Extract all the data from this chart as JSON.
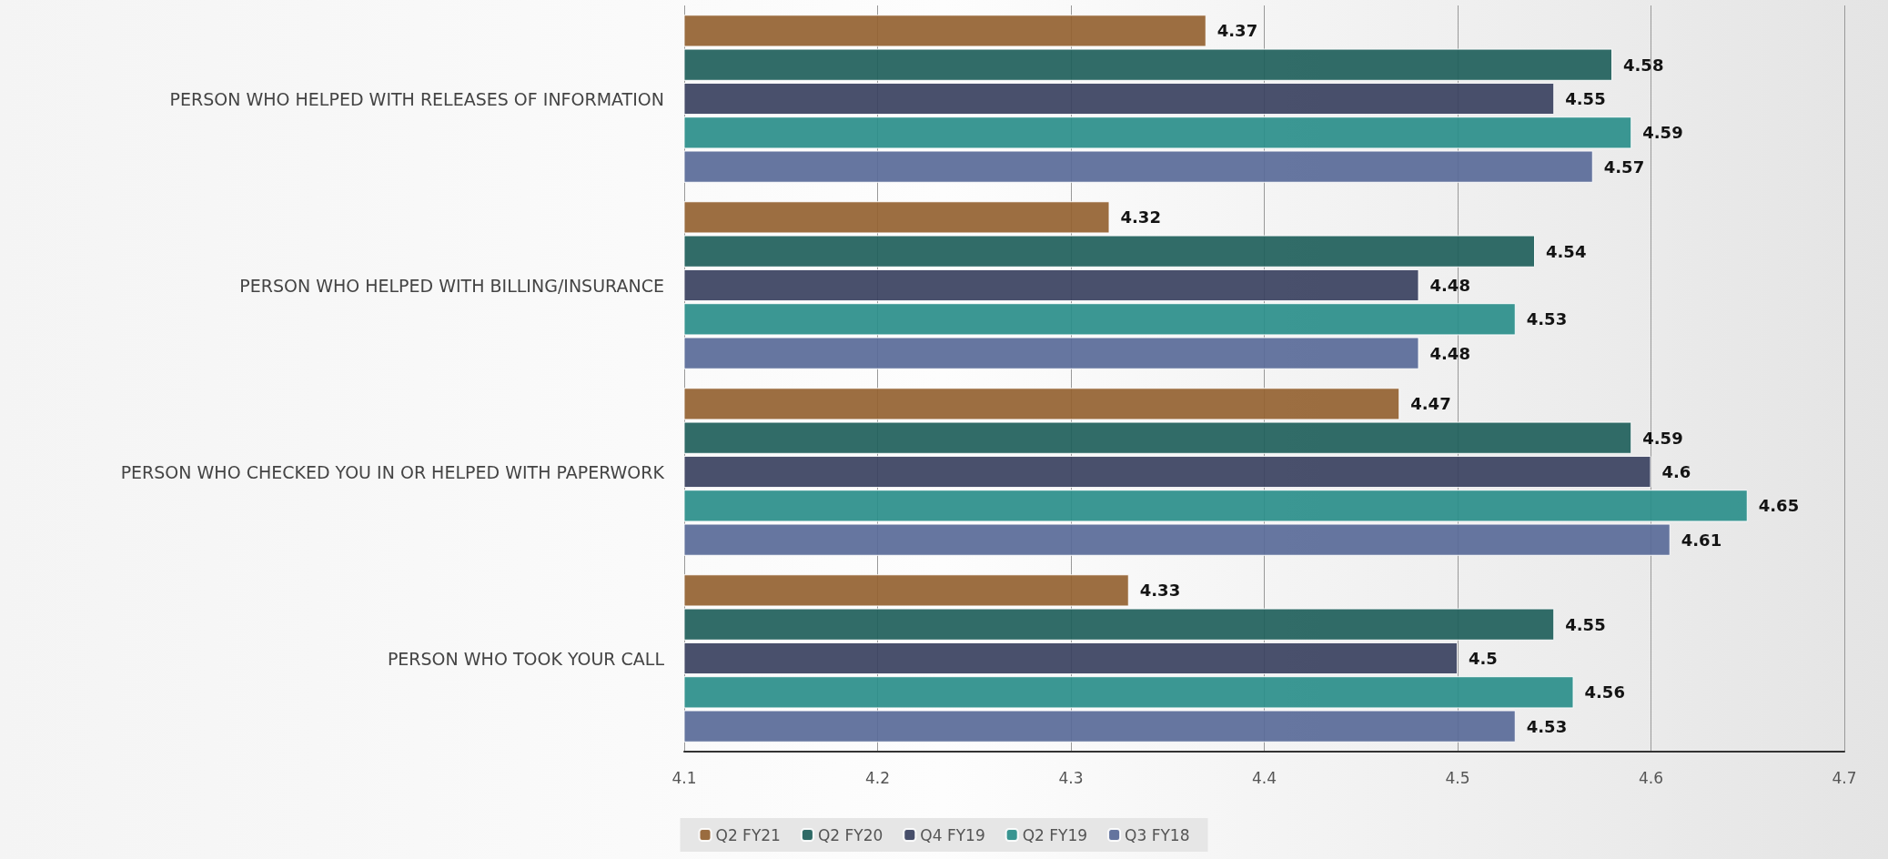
{
  "chart_data": {
    "type": "bar",
    "orientation": "horizontal",
    "categories": [
      "PERSON WHO HELPED WITH RELEASES OF INFORMATION",
      "PERSON WHO HELPED WITH BILLING/INSURANCE",
      "PERSON WHO CHECKED YOU IN OR HELPED WITH PAPERWORK",
      "PERSON WHO TOOK YOUR CALL"
    ],
    "series": [
      {
        "name": "Q2 FY21",
        "color": "#946231",
        "values": [
          4.37,
          4.32,
          4.47,
          4.33
        ]
      },
      {
        "name": "Q2 FY20",
        "color": "#1f5f5b",
        "values": [
          4.58,
          4.54,
          4.59,
          4.55
        ]
      },
      {
        "name": "Q4 FY19",
        "color": "#3a4160",
        "values": [
          4.55,
          4.48,
          4.6,
          4.5
        ]
      },
      {
        "name": "Q2 FY19",
        "color": "#2a8e8a",
        "values": [
          4.59,
          4.53,
          4.65,
          4.56
        ]
      },
      {
        "name": "Q3 FY18",
        "color": "#596a98",
        "values": [
          4.57,
          4.48,
          4.61,
          4.53
        ]
      }
    ],
    "xlim": [
      4.1,
      4.7
    ],
    "xticks": [
      4.1,
      4.2,
      4.3,
      4.4,
      4.5,
      4.6,
      4.7
    ],
    "grid": "x",
    "legend": "bottom",
    "data_labels": true
  }
}
